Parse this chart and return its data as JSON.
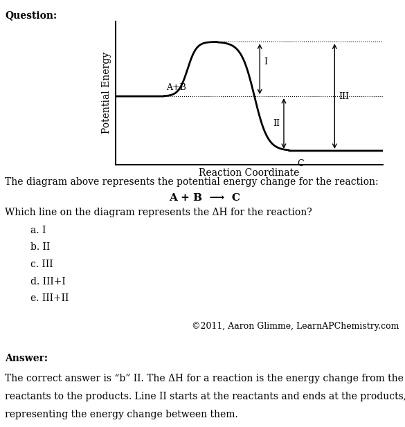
{
  "title_question": "Question:",
  "xlabel": "Reaction Coordinate",
  "ylabel": "Potential Energy",
  "reactant_label": "A+B",
  "product_label": "C",
  "arrow_I_label": "I",
  "arrow_II_label": "II",
  "arrow_III_label": "III",
  "question_text": "The diagram above represents the potential energy change for the reaction:",
  "reaction_line": "A + B ⟶ C",
  "which_line_text": "Which line on the diagram represents the ΔH for the reaction?",
  "choices": [
    "a. I",
    "b. II",
    "c. III",
    "d. III+I",
    "e. III+II"
  ],
  "copyright_text": "©2011, Aaron Glimme, LearnAPChemistry.com",
  "answer_label": "Answer:",
  "answer_text_line1": "The correct answer is “b” II. The ΔH for a reaction is the energy change from the",
  "answer_text_line2": "reactants to the products. Line II starts at the reactants and ends at the products,",
  "answer_text_line3": "representing the energy change between them.",
  "reactant_energy": 0.5,
  "product_energy": 0.1,
  "peak_energy": 0.9,
  "bg_color": "#ffffff",
  "curve_color": "#000000",
  "dotted_line_color": "#000000",
  "arrow_color": "#000000",
  "fig_width": 5.85,
  "fig_height": 6.17,
  "dpi": 100
}
